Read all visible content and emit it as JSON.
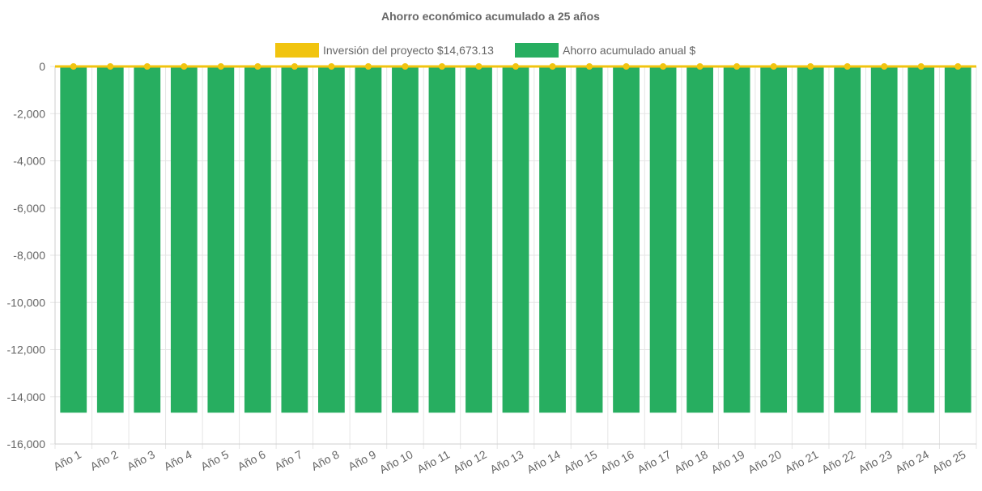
{
  "chart_data": {
    "type": "bar",
    "title": "Ahorro económico acumulado a 25 años",
    "categories": [
      "Año 1",
      "Año 2",
      "Año 3",
      "Año 4",
      "Año 5",
      "Año 6",
      "Año 7",
      "Año 8",
      "Año 9",
      "Año 10",
      "Año 11",
      "Año 12",
      "Año 13",
      "Año 14",
      "Año 15",
      "Año 16",
      "Año 17",
      "Año 18",
      "Año 19",
      "Año 20",
      "Año 21",
      "Año 22",
      "Año 23",
      "Año 24",
      "Año 25"
    ],
    "series": [
      {
        "name": "Inversión del proyecto $14,673.13",
        "type": "line",
        "color": "#f1c40f",
        "values": [
          0,
          0,
          0,
          0,
          0,
          0,
          0,
          0,
          0,
          0,
          0,
          0,
          0,
          0,
          0,
          0,
          0,
          0,
          0,
          0,
          0,
          0,
          0,
          0,
          0
        ]
      },
      {
        "name": "Ahorro acumulado anual $",
        "type": "bar",
        "color": "#27ae60",
        "values": [
          -14673.13,
          -14673.13,
          -14673.13,
          -14673.13,
          -14673.13,
          -14673.13,
          -14673.13,
          -14673.13,
          -14673.13,
          -14673.13,
          -14673.13,
          -14673.13,
          -14673.13,
          -14673.13,
          -14673.13,
          -14673.13,
          -14673.13,
          -14673.13,
          -14673.13,
          -14673.13,
          -14673.13,
          -14673.13,
          -14673.13,
          -14673.13,
          -14673.13
        ]
      }
    ],
    "xlabel": "",
    "ylabel": "",
    "ylim": [
      -16000,
      0
    ],
    "yticks": [
      0,
      -2000,
      -4000,
      -6000,
      -8000,
      -10000,
      -12000,
      -14000,
      -16000
    ],
    "ytick_labels": [
      "0",
      "-2,000",
      "-4,000",
      "-6,000",
      "-8,000",
      "-10,000",
      "-12,000",
      "-14,000",
      "-16,000"
    ],
    "grid": true,
    "legend_position": "top-center"
  }
}
